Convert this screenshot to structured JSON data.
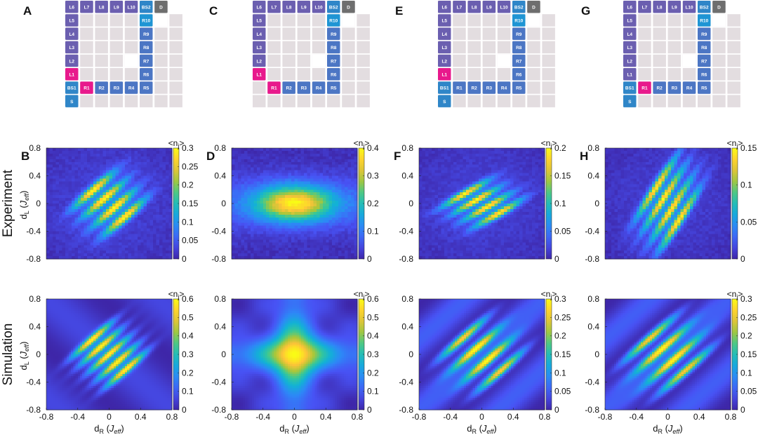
{
  "figure": {
    "panel_labels": [
      "A",
      "B",
      "C",
      "D",
      "E",
      "F",
      "G",
      "H"
    ],
    "row_labels": [
      "Experiment",
      "Simulation"
    ],
    "axis_labels": {
      "x": {
        "main": "d",
        "sub": "R",
        "open": " (",
        "unit": "J",
        "unit_sub": "eff",
        "close": ")"
      },
      "y": {
        "main": "d",
        "sub": "L",
        "open": " (",
        "unit": "J",
        "unit_sub": "eff",
        "close": ")"
      }
    },
    "colorbar_title": {
      "main": "<n",
      "sub": "j",
      "close": ">"
    }
  },
  "colors": {
    "grid_bg": "#e3dde0",
    "L_cell": "#6b5fb0",
    "R_cell": "#4c76c4",
    "BS_cell": "#2f86c8",
    "S_cell": "#2f86c8",
    "D_cell": "#6e6e6e",
    "highlight": "#e8198c",
    "R10_cell": "#1f95d4"
  },
  "lattices": [
    {
      "panel": "A",
      "top_row": [
        "L6",
        "L7",
        "L8",
        "L9",
        "L10",
        "BS2",
        "D"
      ],
      "left_col": [
        "L5",
        "L4",
        "L3",
        "L2",
        "L1",
        "BS1",
        "S"
      ],
      "right_col": [
        "R10",
        "R9",
        "R8",
        "R7",
        "R6",
        "R5"
      ],
      "bottom_row": [
        "R1",
        "R2",
        "R3",
        "R4"
      ],
      "highlight": [
        "L1",
        "R1"
      ]
    },
    {
      "panel": "C",
      "top_row": [
        "L6",
        "L7",
        "L8",
        "L9",
        "L10",
        "BS2",
        "D"
      ],
      "left_col": [
        "L5",
        "L4",
        "L3",
        "L2",
        "L1"
      ],
      "right_col": [
        "R10",
        "R9",
        "R8",
        "R7",
        "R6",
        "R5"
      ],
      "bottom_row": [
        "R1",
        "R2",
        "R3",
        "R4"
      ],
      "highlight": [
        "L1",
        "R1"
      ]
    },
    {
      "panel": "E",
      "top_row": [
        "L6",
        "L7",
        "L8",
        "L9",
        "L10",
        "BS2",
        "D"
      ],
      "left_col": [
        "L5",
        "L4",
        "L3",
        "L2",
        "L1",
        "BS1",
        "S"
      ],
      "right_col": [
        "R10",
        "R9",
        "R8",
        "R7",
        "R6",
        "R5"
      ],
      "bottom_row": [
        "R1",
        "R2",
        "R3",
        "R4"
      ],
      "highlight": [
        "L1"
      ]
    },
    {
      "panel": "G",
      "top_row": [
        "L6",
        "L7",
        "L8",
        "L9",
        "L10",
        "BS2",
        "D"
      ],
      "left_col": [
        "L5",
        "L4",
        "L3",
        "L2",
        "L1",
        "BS1",
        "S"
      ],
      "right_col": [
        "R10",
        "R9",
        "R8",
        "R7",
        "R6",
        "R5"
      ],
      "bottom_row": [
        "R1",
        "R2",
        "R3",
        "R4"
      ],
      "highlight": [
        "R1"
      ]
    }
  ],
  "chart_data": [
    {
      "panel": "B",
      "row": "Experiment",
      "type": "heatmap",
      "colormap": "parula",
      "x_ticks": [],
      "y_ticks": [
        "0.8",
        "0.4",
        "0",
        "-0.4",
        "-0.8"
      ],
      "cbar_ticks": [
        "0.3",
        "0.25",
        "0.2",
        "0.15",
        "0.1",
        "0.05",
        "0"
      ],
      "cbar_range": [
        0,
        0.3
      ],
      "xlim": [
        -0.8,
        0.8
      ],
      "ylim": [
        -0.8,
        0.8
      ]
    },
    {
      "panel": "D",
      "row": "Experiment",
      "type": "heatmap",
      "colormap": "parula",
      "x_ticks": [],
      "y_ticks": [
        "0.8",
        "0.4",
        "0",
        "-0.4",
        "-0.8"
      ],
      "cbar_ticks": [
        "0.4",
        "0.3",
        "0.2",
        "0.1",
        "0"
      ],
      "cbar_range": [
        0,
        0.4
      ],
      "xlim": [
        -0.8,
        0.8
      ],
      "ylim": [
        -0.8,
        0.8
      ]
    },
    {
      "panel": "F",
      "row": "Experiment",
      "type": "heatmap",
      "colormap": "parula",
      "x_ticks": [],
      "y_ticks": [
        "0.8",
        "0.4",
        "0",
        "-0.4",
        "-0.8"
      ],
      "cbar_ticks": [
        "0.2",
        "0.15",
        "0.1",
        "0.05",
        "0"
      ],
      "cbar_range": [
        0,
        0.2
      ],
      "xlim": [
        -0.8,
        0.8
      ],
      "ylim": [
        -0.8,
        0.8
      ]
    },
    {
      "panel": "H",
      "row": "Experiment",
      "type": "heatmap",
      "colormap": "parula",
      "x_ticks": [],
      "y_ticks": [
        "0.8",
        "0.4",
        "0",
        "-0.4",
        "-0.8"
      ],
      "cbar_ticks": [
        "0.15",
        "0.1",
        "0.05",
        "0"
      ],
      "cbar_range": [
        0,
        0.15
      ],
      "xlim": [
        -0.8,
        0.8
      ],
      "ylim": [
        -0.8,
        0.8
      ]
    },
    {
      "panel": "B",
      "row": "Simulation",
      "type": "heatmap",
      "colormap": "parula",
      "x_ticks": [
        "-0.8",
        "-0.4",
        "0",
        "0.4",
        "0.8"
      ],
      "y_ticks": [
        "0.8",
        "0.4",
        "0",
        "-0.4",
        "-0.8"
      ],
      "cbar_ticks": [
        "0.6",
        "0.5",
        "0.4",
        "0.3",
        "0.2",
        "0.1",
        "0"
      ],
      "cbar_range": [
        0,
        0.6
      ],
      "xlim": [
        -0.8,
        0.8
      ],
      "ylim": [
        -0.8,
        0.8
      ]
    },
    {
      "panel": "D",
      "row": "Simulation",
      "type": "heatmap",
      "colormap": "parula",
      "x_ticks": [
        "-0.8",
        "-0.4",
        "0",
        "0.4",
        "0.8"
      ],
      "y_ticks": [
        "0.8",
        "0.4",
        "0",
        "-0.4",
        "-0.8"
      ],
      "cbar_ticks": [
        "0.6",
        "0.5",
        "0.4",
        "0.3",
        "0.2",
        "0.1",
        "0"
      ],
      "cbar_range": [
        0,
        0.6
      ],
      "xlim": [
        -0.8,
        0.8
      ],
      "ylim": [
        -0.8,
        0.8
      ]
    },
    {
      "panel": "F",
      "row": "Simulation",
      "type": "heatmap",
      "colormap": "parula",
      "x_ticks": [
        "-0.8",
        "-0.4",
        "0",
        "0.4",
        "0.8"
      ],
      "y_ticks": [
        "0.8",
        "0.4",
        "0",
        "-0.4",
        "-0.8"
      ],
      "cbar_ticks": [
        "0.3",
        "0.25",
        "0.2",
        "0.15",
        "0.1",
        "0.05",
        "0"
      ],
      "cbar_range": [
        0,
        0.3
      ],
      "xlim": [
        -0.8,
        0.8
      ],
      "ylim": [
        -0.8,
        0.8
      ]
    },
    {
      "panel": "H",
      "row": "Simulation",
      "type": "heatmap",
      "colormap": "parula",
      "x_ticks": [
        "-0.8",
        "-0.4",
        "0",
        "0.4",
        "0.8"
      ],
      "y_ticks": [
        "0.8",
        "0.4",
        "0",
        "-0.4",
        "-0.8"
      ],
      "cbar_ticks": [
        "0.3",
        "0.25",
        "0.2",
        "0.15",
        "0.1",
        "0.05",
        "0"
      ],
      "cbar_range": [
        0,
        0.3
      ],
      "xlim": [
        -0.8,
        0.8
      ],
      "ylim": [
        -0.8,
        0.8
      ]
    }
  ]
}
